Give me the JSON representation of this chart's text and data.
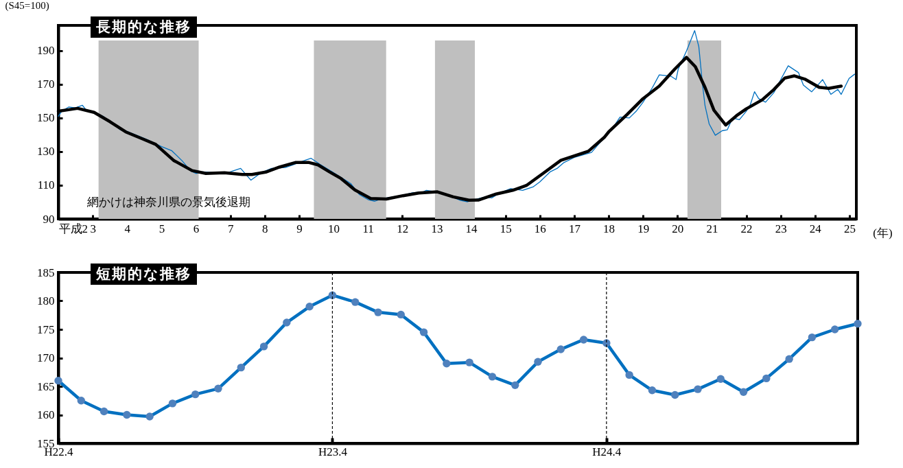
{
  "chart_data": [
    {
      "type": "line",
      "title": "長期的な推移",
      "ylabel": "(S45=100)",
      "xlabel": "(年)",
      "xlim": [
        2,
        25.2
      ],
      "ylim": [
        90,
        205
      ],
      "xticks": [
        {
          "value": 2,
          "label": "平成2"
        },
        3,
        4,
        5,
        6,
        7,
        8,
        9,
        10,
        11,
        12,
        13,
        14,
        15,
        16,
        17,
        18,
        19,
        20,
        21,
        22,
        23,
        24,
        25
      ],
      "yticks": [
        90,
        110,
        130,
        150,
        170,
        190
      ],
      "grid": false,
      "bands": [
        {
          "axis": "x",
          "from": 3.17,
          "to": 6.08,
          "color": "#bfbfbf"
        },
        {
          "axis": "x",
          "from": 9.43,
          "to": 11.53,
          "color": "#bfbfbf"
        },
        {
          "axis": "x",
          "from": 12.95,
          "to": 14.11,
          "color": "#bfbfbf"
        },
        {
          "axis": "x",
          "from": 20.29,
          "to": 21.27,
          "color": "#bfbfbf"
        }
      ],
      "annotations": [
        "網かけは神奈川県の景気後退期"
      ],
      "series": [
        {
          "color": "#0070c0",
          "x": [
            2.0,
            2.1,
            2.3,
            2.5,
            2.7,
            2.8,
            3.0,
            3.3,
            3.6,
            3.8,
            4.0,
            4.3,
            4.6,
            5.0,
            5.3,
            5.6,
            5.85,
            6.0,
            6.2,
            6.5,
            7.0,
            7.3,
            7.6,
            7.9,
            8.2,
            8.6,
            8.8,
            9.2,
            9.35,
            9.6,
            10.0,
            10.5,
            10.75,
            11.0,
            11.2,
            11.4,
            11.7,
            12.0,
            12.3,
            12.6,
            12.7,
            13.0,
            13.4,
            13.7,
            13.9,
            14.1,
            14.4,
            14.6,
            14.8,
            15.15,
            15.5,
            15.8,
            16.0,
            16.3,
            16.5,
            16.7,
            17.0,
            17.5,
            17.9,
            18.0,
            18.2,
            18.33,
            18.6,
            18.8,
            19.0,
            19.27,
            19.47,
            19.8,
            19.96,
            20.02,
            20.26,
            20.5,
            20.62,
            20.73,
            20.8,
            20.92,
            21.1,
            21.3,
            21.45,
            21.6,
            21.8,
            22.0,
            22.12,
            22.24,
            22.36,
            22.56,
            22.8,
            23.06,
            23.22,
            23.52,
            23.66,
            23.9,
            24.1,
            24.22,
            24.46,
            24.66,
            24.76,
            24.99,
            25.15
          ],
          "values": [
            151,
            154,
            156.5,
            156,
            157.5,
            155,
            153.5,
            151,
            146.5,
            143,
            142,
            139.5,
            137,
            133,
            130.5,
            124.5,
            118.5,
            117,
            118,
            117.5,
            118,
            120,
            113,
            117.5,
            120,
            120.5,
            122,
            125,
            126,
            122.5,
            117.5,
            111,
            104.5,
            101.5,
            100.5,
            102,
            103,
            104,
            105.5,
            106,
            107,
            106,
            103.5,
            101,
            100.2,
            101.5,
            103,
            102.5,
            105,
            108,
            107,
            109,
            112,
            118,
            120,
            123.5,
            126.5,
            129.5,
            139,
            141,
            146.5,
            150.5,
            150,
            154,
            159.4,
            168,
            175.6,
            174.9,
            172.8,
            178.9,
            189.7,
            201.9,
            192.4,
            169.5,
            157.4,
            146.5,
            139.7,
            142.4,
            143,
            150,
            149,
            154,
            158,
            165.6,
            161.5,
            159.4,
            165,
            175,
            181,
            176.9,
            169.5,
            165.5,
            170,
            172.8,
            164,
            167,
            164,
            173.5,
            176
          ]
        },
        {
          "color": "#000000",
          "x": [
            2.0,
            2.3,
            2.56,
            3.04,
            3.5,
            3.96,
            4.43,
            4.83,
            5.35,
            5.89,
            6.29,
            6.83,
            7.35,
            7.63,
            8.03,
            8.43,
            8.89,
            9.29,
            9.55,
            9.88,
            10.22,
            10.62,
            11.08,
            11.54,
            12.02,
            12.48,
            13.02,
            13.48,
            13.94,
            14.21,
            14.73,
            15.21,
            15.61,
            16.07,
            16.61,
            17.41,
            17.87,
            18.0,
            18.53,
            19.0,
            19.47,
            19.92,
            20.26,
            20.52,
            20.8,
            21.06,
            21.4,
            21.72,
            22.0,
            22.46,
            22.8,
            23.12,
            23.4,
            23.72,
            24.12,
            24.4,
            24.76
          ],
          "values": [
            154,
            154.9,
            155.7,
            153.3,
            147.8,
            141.7,
            137.7,
            134.3,
            124.8,
            118.7,
            117,
            117.4,
            116.4,
            116.4,
            117.8,
            120.8,
            123.5,
            123.5,
            122.1,
            118,
            114,
            107.2,
            102.1,
            101.8,
            103.8,
            105.4,
            106.1,
            103.1,
            101.1,
            101.2,
            104.8,
            107,
            109.9,
            116.7,
            124.8,
            130.2,
            138.4,
            141.7,
            151.9,
            161.5,
            168.9,
            179,
            186,
            180.4,
            168.2,
            154.6,
            145.8,
            151.4,
            155.4,
            160.7,
            166.8,
            173.7,
            175,
            172.9,
            168.2,
            167.6,
            168.9
          ]
        }
      ]
    },
    {
      "type": "line",
      "title": "短期的な推移",
      "marker": "circle",
      "grid": false,
      "ylim": [
        155,
        185
      ],
      "yticks": [
        155,
        160,
        165,
        170,
        175,
        180,
        185
      ],
      "categories": [
        "H22.4",
        null,
        null,
        null,
        null,
        null,
        null,
        null,
        null,
        null,
        null,
        null,
        "H23.4",
        null,
        null,
        null,
        null,
        null,
        null,
        null,
        null,
        null,
        null,
        null,
        "H24.4",
        null,
        null,
        null,
        null,
        null,
        null,
        null,
        null,
        null,
        null,
        null
      ],
      "ref_lines": [
        {
          "axis": "x",
          "value": "H23.4",
          "color": "#000000",
          "line_style": "dashed"
        },
        {
          "axis": "x",
          "value": "H24.4",
          "color": "#000000",
          "line_style": "dashed"
        }
      ],
      "series": [
        {
          "color": "#0070c0",
          "values": [
            166,
            162.5,
            160.6,
            160,
            159.7,
            162,
            163.6,
            164.6,
            168.3,
            172,
            176.2,
            179,
            181,
            179.8,
            178,
            177.6,
            174.5,
            169,
            169.2,
            166.7,
            165.2,
            169.3,
            171.5,
            173.2,
            172.6,
            167,
            164.3,
            163.5,
            164.5,
            166.3,
            164,
            166.4,
            169.8,
            173.6,
            175,
            176
          ]
        }
      ]
    }
  ]
}
